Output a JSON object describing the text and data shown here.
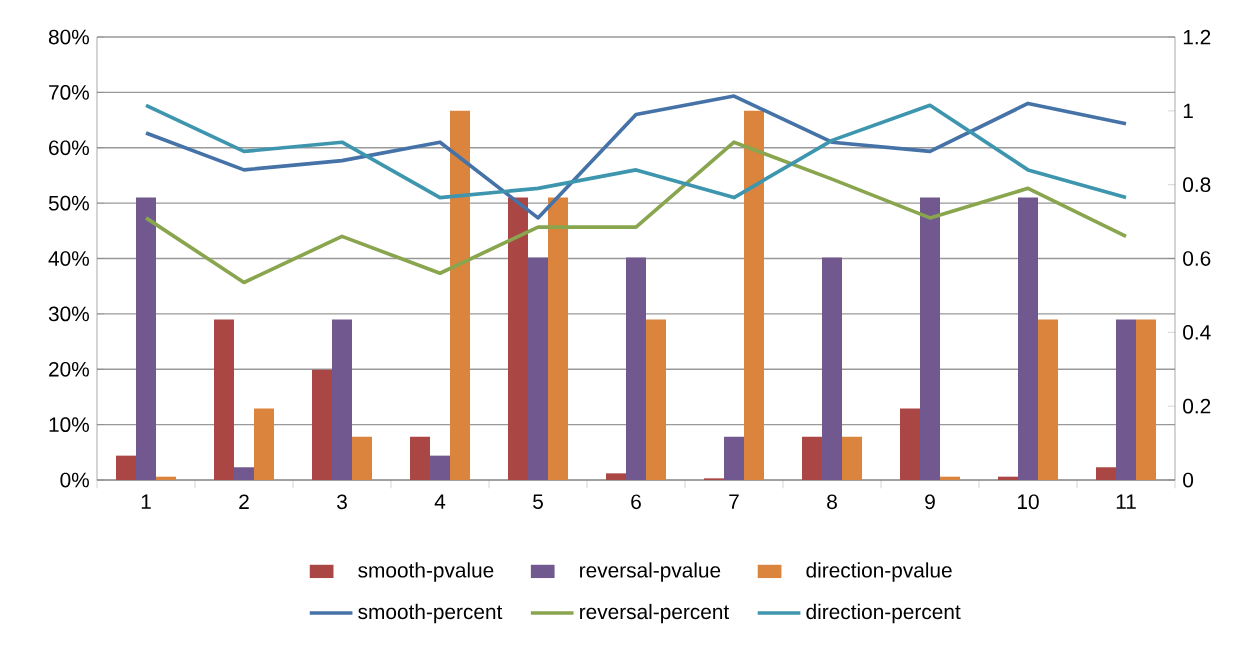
{
  "chart_data": {
    "type": "bar",
    "categories": [
      "1",
      "2",
      "3",
      "4",
      "5",
      "6",
      "7",
      "8",
      "9",
      "10",
      "11"
    ],
    "series": [
      {
        "name": "smooth-pvalue",
        "color": "#aa4643",
        "values": [
          4.4,
          29,
          19.9,
          7.8,
          51,
          1.2,
          0.3,
          7.8,
          12.9,
          0.6,
          2.3
        ]
      },
      {
        "name": "reversal-pvalue",
        "color": "#71588f",
        "values": [
          51,
          2.3,
          29,
          4.4,
          40.2,
          40.2,
          7.8,
          40.2,
          51,
          51,
          29
        ]
      },
      {
        "name": "direction-pvalue",
        "color": "#db843d",
        "values": [
          0.6,
          12.9,
          7.8,
          66.7,
          51,
          29,
          66.7,
          7.8,
          0.6,
          29,
          29
        ]
      },
      {
        "name": "smooth-percent",
        "type": "line",
        "axis": "y2",
        "color": "#4572a7",
        "values": [
          0.94,
          0.84,
          0.865,
          0.915,
          0.71,
          0.99,
          1.04,
          0.915,
          0.89,
          1.02,
          0.965
        ]
      },
      {
        "name": "reversal-percent",
        "type": "line",
        "axis": "y2",
        "color": "#89a54e",
        "values": [
          0.71,
          0.535,
          0.66,
          0.56,
          0.685,
          0.685,
          0.915,
          0.815,
          0.71,
          0.79,
          0.66
        ]
      },
      {
        "name": "direction-percent",
        "type": "line",
        "axis": "y2",
        "color": "#3d96ae",
        "values": [
          1.015,
          0.89,
          0.915,
          0.765,
          0.79,
          0.84,
          0.765,
          0.92,
          1.015,
          0.84,
          0.765
        ]
      }
    ],
    "ylim": [
      0,
      80
    ],
    "yticks": [
      {
        "value": 0,
        "label": "0%"
      },
      {
        "value": 10,
        "label": "10%"
      },
      {
        "value": 20,
        "label": "20%"
      },
      {
        "value": 30,
        "label": "30%"
      },
      {
        "value": 40,
        "label": "40%"
      },
      {
        "value": 50,
        "label": "50%"
      },
      {
        "value": 60,
        "label": "60%"
      },
      {
        "value": 70,
        "label": "70%"
      },
      {
        "value": 80,
        "label": "80%"
      }
    ],
    "y2lim": [
      0,
      1.2
    ],
    "y2ticks": [
      0,
      0.2,
      0.4,
      0.6,
      0.8,
      1,
      1.2
    ],
    "grid": "y",
    "legend": "bottom"
  }
}
